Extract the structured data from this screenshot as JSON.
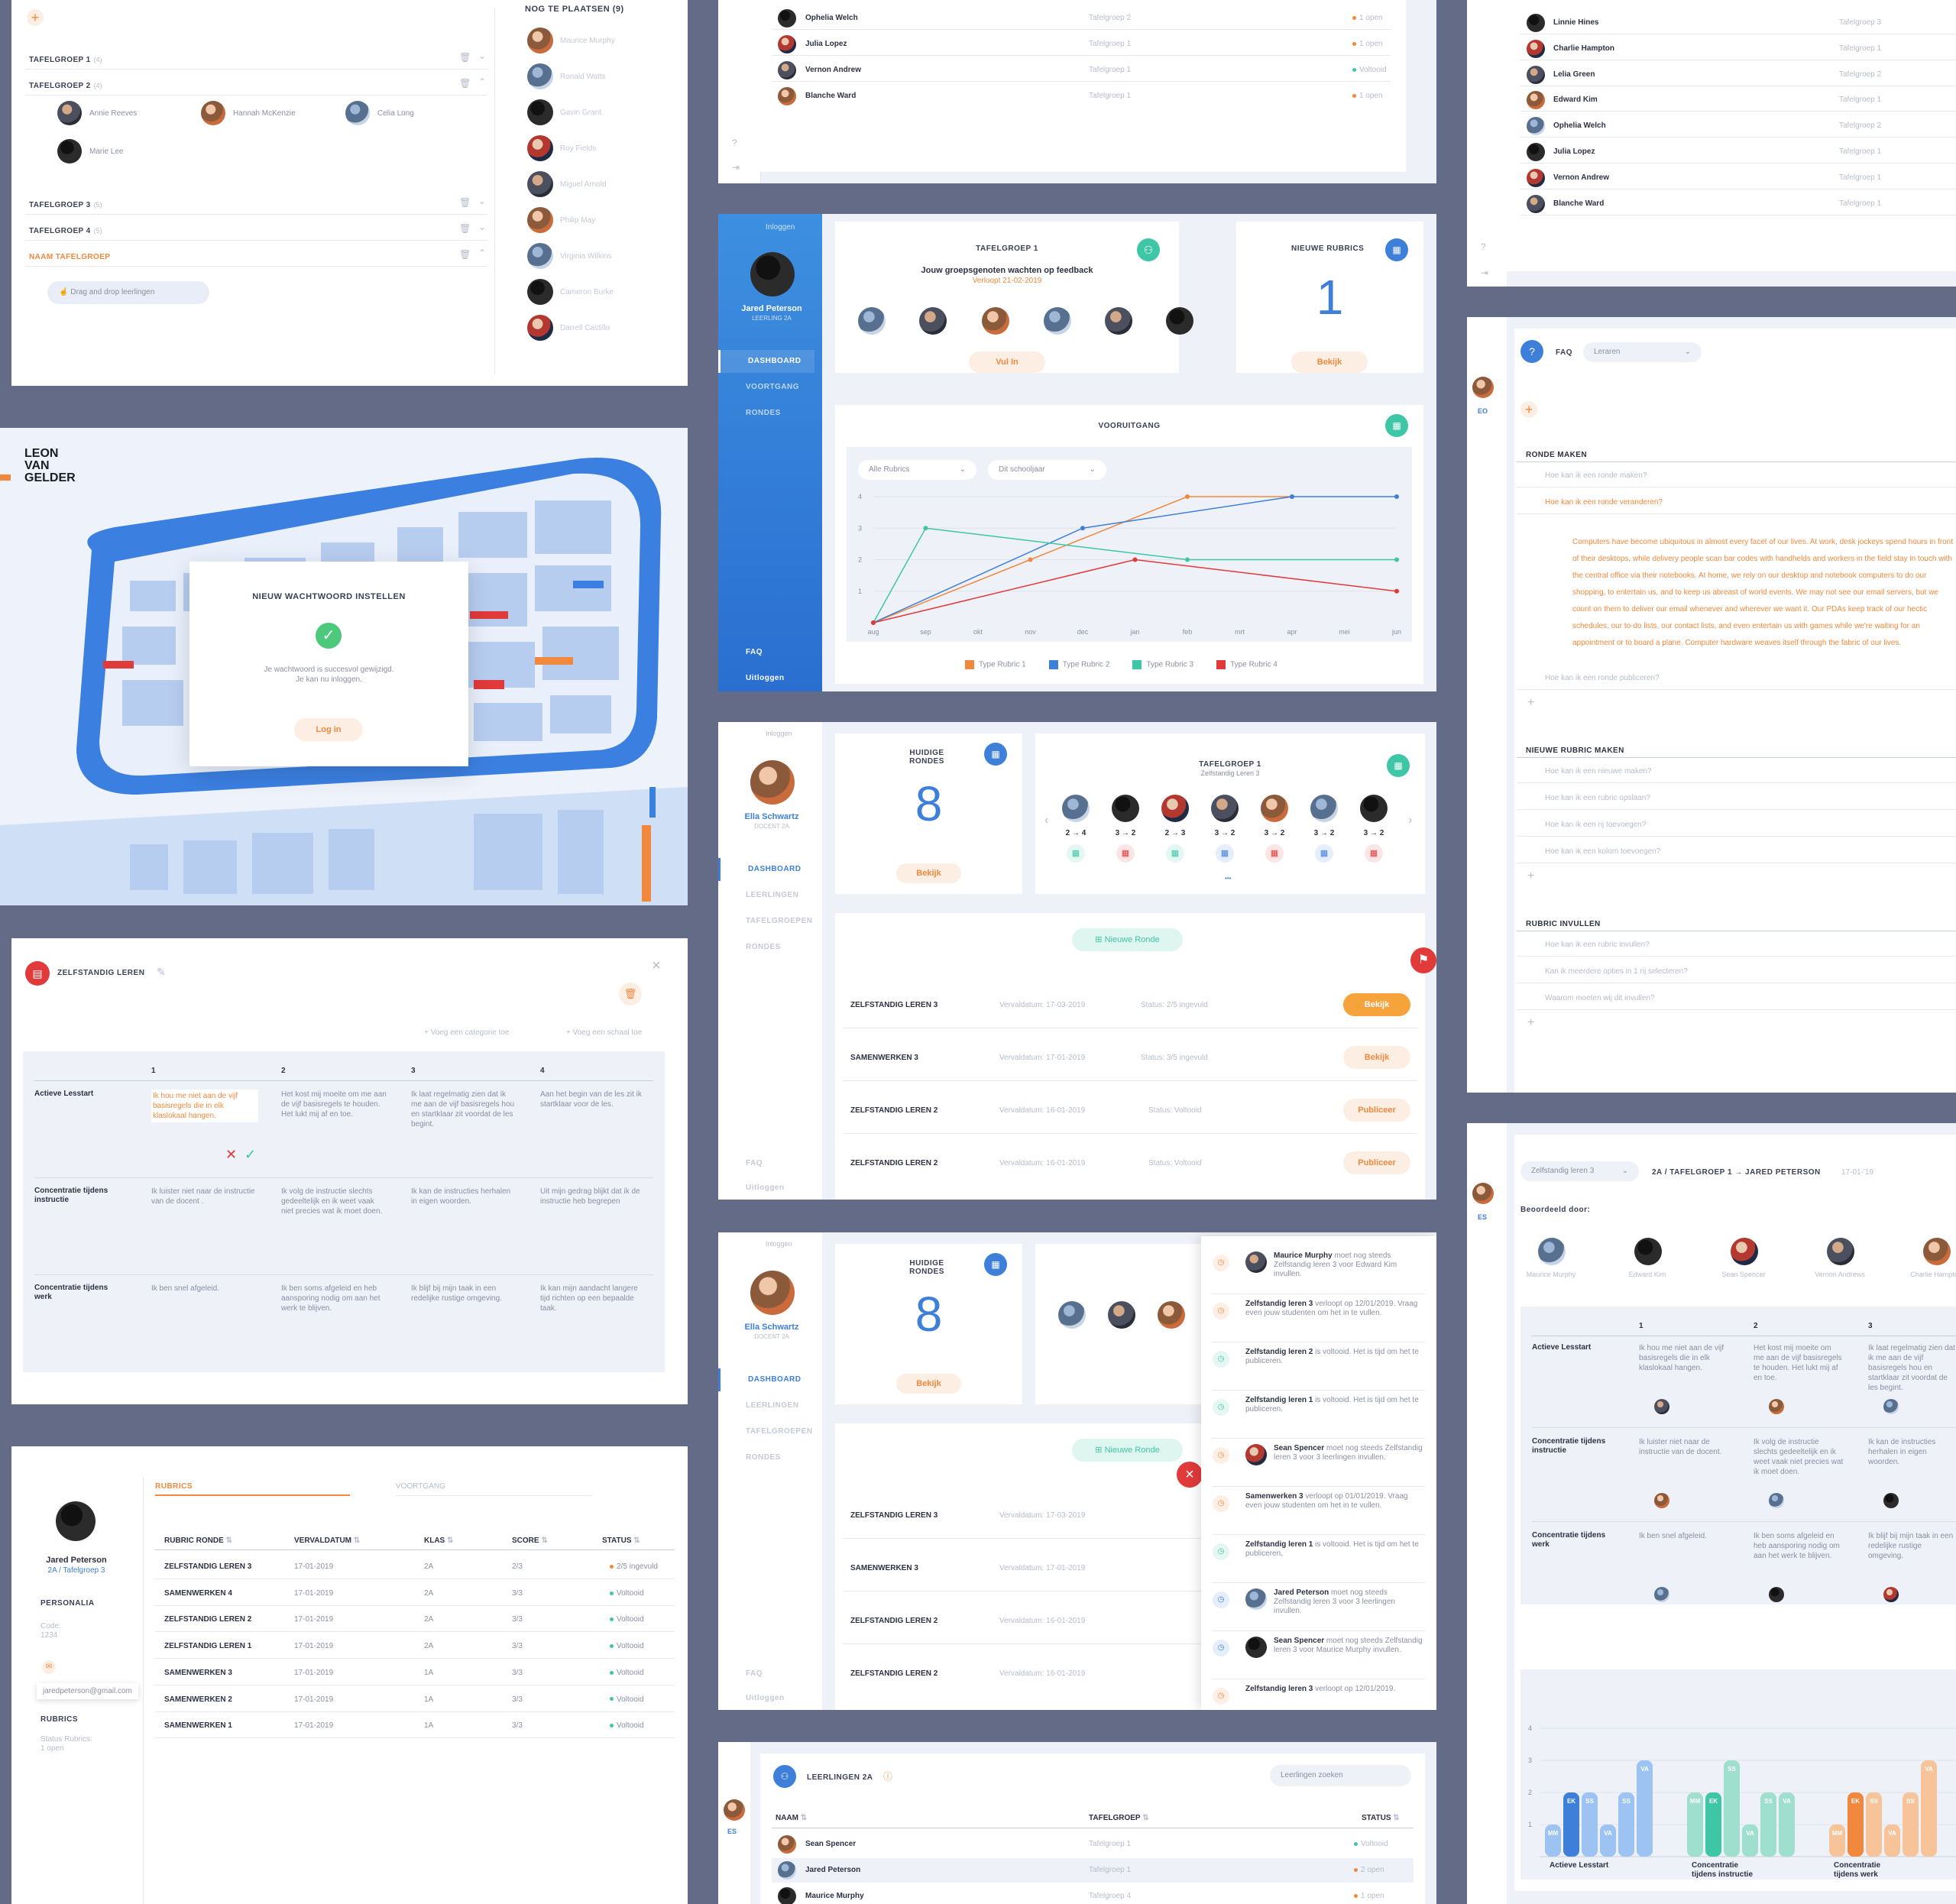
{
  "groups_panel": {
    "add_icon": "plus-icon",
    "groups": [
      {
        "name": "TAFELGROEP 1",
        "count": "(4)",
        "open": false
      },
      {
        "name": "TAFELGROEP 2",
        "count": "(4)",
        "open": true
      },
      {
        "name": "TAFELGROEP 3",
        "count": "(5)",
        "open": false
      },
      {
        "name": "TAFELGROEP 4",
        "count": "(5)",
        "open": false
      },
      {
        "name": "NAAM TAFELGROEP",
        "count": "",
        "open": true
      }
    ],
    "members": [
      "Annie Reeves",
      "Hannah McKenzie",
      "Celia Long",
      "Marie Lee"
    ],
    "drag_hint": "Drag and drop leerlingen",
    "unplaced_title": "NOG TE PLAATSEN (9)",
    "unplaced": [
      "Maurice Murphy",
      "Ronald Watts",
      "Gavin Grant",
      "Roy Fields",
      "Miguel Arnold",
      "Philip May",
      "Virginia Wilkins",
      "Cameron Burke",
      "Darrell Castillo"
    ]
  },
  "login": {
    "logo": "LEON VAN GELDER",
    "modal_title": "NIEUW WACHTWOORD INSTELLEN",
    "line1": "Je wachtwoord is succesvol gewijzigd.",
    "line2": "Je kan nu inloggen.",
    "button": "Log in"
  },
  "rubric_editor": {
    "title": "ZELFSTANDIG LEREN",
    "add_category": "Voeg een categorie toe",
    "add_scale": "Voeg een schaal toe",
    "levels": [
      "1",
      "2",
      "3",
      "4"
    ],
    "rows": [
      {
        "name": "Actieve Lesstart",
        "cells": [
          "Ik hou me niet aan de vijf basisregels die in elk klaslokaal hangen.",
          "Het kost mij moeite om me aan de vijf basisregels te houden. Het lukt mij af en toe.",
          "Ik laat regelmatig zien dat ik me aan de vijf basisregels hou en startklaar zit voordat de les begint.",
          "Aan het begin van de les zit ik startklaar voor de les."
        ]
      },
      {
        "name": "Concentratie tijdens instructie",
        "cells": [
          "Ik luister niet naar de instructie van de docent .",
          "Ik volg de instructie slechts gedeeltelijk en ik weet vaak niet precies wat ik moet doen.",
          "Ik kan de instructies herhalen in eigen woorden.",
          "Uit mijn gedrag blijkt dat ik de instructie heb begrepen"
        ]
      },
      {
        "name": "Concentratie tijdens werk",
        "cells": [
          "Ik ben snel afgeleid.",
          "Ik ben soms afgeleid en heb aansporing nodig om aan het werk te blijven.",
          "Ik blijf bij mijn taak in een redelijke rustige omgeving.",
          "Ik kan mijn aandacht langere tijd richten op een bepaalde taak."
        ]
      }
    ]
  },
  "profile": {
    "name": "Jared Peterson",
    "klas": "2A",
    "group": "Tafelgroep 3",
    "personalia": "PERSONALIA",
    "code_label": "Code:",
    "code": "1234",
    "email": "jaredpeterson@gmail.com",
    "rubrics_label": "RUBRICS",
    "status_label": "Status Rubrics:",
    "status_value": "1 open",
    "tabs": [
      "RUBRICS",
      "VOORTGANG"
    ],
    "headers": [
      "RUBRIC RONDE",
      "VERVALDATUM",
      "KLAS",
      "SCORE",
      "STATUS"
    ],
    "rows": [
      [
        "ZELFSTANDIG LEREN 3",
        "17-01-2019",
        "2A",
        "2/3",
        "2/5 ingevuld"
      ],
      [
        "SAMENWERKEN 4",
        "17-01-2019",
        "2A",
        "3/3",
        "Voltooid"
      ],
      [
        "ZELFSTANDIG LEREN 2",
        "17-01-2019",
        "2A",
        "3/3",
        "Voltooid"
      ],
      [
        "ZELFSTANDIG LEREN 1",
        "17-01-2019",
        "2A",
        "3/3",
        "Voltooid"
      ],
      [
        "SAMENWERKEN 3",
        "17-01-2019",
        "1A",
        "3/3",
        "Voltooid"
      ],
      [
        "SAMENWERKEN 2",
        "17-01-2019",
        "1A",
        "3/3",
        "Voltooid"
      ],
      [
        "SAMENWERKEN 1",
        "17-01-2019",
        "1A",
        "3/3",
        "Voltooid"
      ]
    ]
  },
  "top_list": {
    "rows": [
      [
        "Ophelia Welch",
        "Tafelgroep 2",
        "1 open"
      ],
      [
        "Julia Lopez",
        "Tafelgroep 1",
        "1 open"
      ],
      [
        "Vernon Andrew",
        "Tafelgroep 1",
        "Voltooid"
      ],
      [
        "Blanche Ward",
        "Tafelgroep 1",
        "1 open"
      ]
    ]
  },
  "student_dash": {
    "login": "Inloggen",
    "name": "Jared Peterson",
    "sub": "LEERLING 2A",
    "nav": [
      "DASHBOARD",
      "VOORTGANG",
      "RONDES"
    ],
    "faq": "FAQ",
    "logout": "Uitloggen",
    "group_title": "TAFELGROEP 1",
    "waiting": "Jouw groepsgenoten wachten op feedback",
    "expires": "Verloopt 21-02-2019",
    "fill_btn": "Vul In",
    "new_rubrics": "NIEUWE RUBRICS",
    "new_count": "1",
    "view_btn": "Bekijk",
    "progress_title": "VOORUITGANG",
    "filter1": "Alle Rubrics",
    "filter2": "Dit schooljaar"
  },
  "chart_data": {
    "type": "line",
    "title": "VOORUITGANG",
    "categories": [
      "aug",
      "sep",
      "okt",
      "nov",
      "dec",
      "jan",
      "feb",
      "mrt",
      "apr",
      "mei",
      "jun"
    ],
    "ylim": [
      0,
      4
    ],
    "yticks": [
      "1",
      "2",
      "3",
      "4"
    ],
    "series": [
      {
        "name": "Type Rubric 1",
        "color": "#f0893d",
        "points": [
          [
            0,
            0
          ],
          [
            3,
            2
          ],
          [
            6,
            4
          ],
          [
            8,
            4
          ]
        ]
      },
      {
        "name": "Type Rubric 2",
        "color": "#3d7fd9",
        "points": [
          [
            0,
            0
          ],
          [
            4,
            3
          ],
          [
            8,
            4
          ],
          [
            10,
            4
          ]
        ]
      },
      {
        "name": "Type Rubric 3",
        "color": "#3ec6a6",
        "points": [
          [
            0,
            0
          ],
          [
            1,
            3
          ],
          [
            6,
            2
          ],
          [
            10,
            2
          ]
        ]
      },
      {
        "name": "Type Rubric 4",
        "color": "#e03a3a",
        "points": [
          [
            0,
            0
          ],
          [
            5,
            2
          ],
          [
            10,
            1
          ]
        ]
      }
    ]
  },
  "teacher_dash": {
    "name": "Ella Schwartz",
    "sub": "DOCENT 2A",
    "login": "Inloggen",
    "nav": [
      "DASHBOARD",
      "LEERLINGEN",
      "TAFELGROEPEN",
      "RONDES"
    ],
    "faq": "FAQ",
    "logout": "Uitloggen",
    "current_title": "HUIDIGE RONDES",
    "current_count": "8",
    "view_btn": "Bekijk",
    "group_title": "TAFELGROEP 1",
    "group_sub": "Zelfstandig Leren 3",
    "scores": [
      "2 → 4",
      "3 → 2",
      "2 → 3",
      "3 → 2",
      "3 → 2",
      "3 → 2",
      "3 → 2"
    ],
    "new_round": "Nieuwe Ronde",
    "rounds": [
      {
        "name": "ZELFSTANDIG LEREN 3",
        "due": "Vervaldatum: 17-03-2019",
        "status": "Status: 2/5 ingevuld",
        "action": "Bekijk"
      },
      {
        "name": "SAMENWERKEN 3",
        "due": "Vervaldatum: 17-01-2019",
        "status": "Status: 3/5 ingevuld",
        "action": "Bekijk"
      },
      {
        "name": "ZELFSTANDIG LEREN 2",
        "due": "Vervaldatum: 16-01-2019",
        "status": "Status: Voltooid",
        "action": "Publiceer"
      },
      {
        "name": "ZELFSTANDIG LEREN 2",
        "due": "Vervaldatum: 16-01-2019",
        "status": "Status: Voltooid",
        "action": "Publiceer"
      }
    ]
  },
  "notifications": [
    {
      "b": "Maurice Murphy",
      "t": " moet nog steeds Zelfstandig leren 3 voor Edward Kim invullen."
    },
    {
      "b": "Zelfstandig leren 3",
      "t": " verloopt op 12/01/2019. Vraag even jouw studenten om het in te vullen."
    },
    {
      "b": "Zelfstandig leren 2",
      "t": " is voltooid. Het is tijd om het te publiceren."
    },
    {
      "b": "Zelfstandig leren 1",
      "t": " is voltooid. Het is tijd om het te publiceren."
    },
    {
      "b": "Sean Spencer",
      "t": " moet nog steeds Zelfstandig leren 3 voor 3 leerlingen invullen."
    },
    {
      "b": "Samenwerken 3",
      "t": " verloopt op 01/01/2019. Vraag even jouw studenten om het in te vullen."
    },
    {
      "b": "Zelfstandig leren 1",
      "t": " is voltooid. Het is tijd om het te publiceren."
    },
    {
      "b": "Jared Peterson",
      "t": " moet nog steeds Zelfstandig leren 3 voor 3 leerlingen invullen."
    },
    {
      "b": "Sean Spencer",
      "t": " moet nog steeds Zelfstandig leren 3 voor Maurice Murphy invullen."
    },
    {
      "b": "Zelfstandig leren 3",
      "t": " verloopt op 12/01/2019."
    }
  ],
  "students_list": {
    "title": "LEERLINGEN 2A",
    "search": "Leerlingen zoeken",
    "headers": [
      "NAAM",
      "TAFELGROEP",
      "STATUS"
    ],
    "rows": [
      [
        "Sean Spencer",
        "Tafelgroep 1",
        "Voltooid"
      ],
      [
        "Jared Peterson",
        "Tafelgroep 1",
        "2 open"
      ],
      [
        "Maurice Murphy",
        "Tafelgroep 4",
        "1 open"
      ]
    ]
  },
  "right_list": {
    "rows": [
      [
        "Linnie Hines",
        "Tafelgroep 3"
      ],
      [
        "Charlie Hampton",
        "Tafelgroep 1"
      ],
      [
        "Lelia Green",
        "Tafelgroep 2"
      ],
      [
        "Edward Kim",
        "Tafelgroep 1"
      ],
      [
        "Ophelia Welch",
        "Tafelgroep 2"
      ],
      [
        "Julia Lopez",
        "Tafelgroep 1"
      ],
      [
        "Vernon Andrew",
        "Tafelgroep 1"
      ],
      [
        "Blanche Ward",
        "Tafelgroep 1"
      ]
    ]
  },
  "faq": {
    "title": "FAQ",
    "filter": "Leraren",
    "initials": "EO",
    "sections": [
      {
        "title": "RONDE MAKEN",
        "items": [
          "Hoe kan ik een ronde maken?",
          "Hoe kan ik een ronde veranderen?",
          "Hoe kan ik een ronde publiceren?"
        ]
      },
      {
        "title": "NIEUWE RUBRIC MAKEN",
        "items": [
          "Hoe kan ik een nieuwe maken?",
          "Hoe kan ik een rubric opslaan?",
          "Hoe kan ik een rij toevoegen?",
          "Hoe kan ik een kolom toevoegen?"
        ]
      },
      {
        "title": "RUBRIC INVULLEN",
        "items": [
          "Hoe kan ik een rubric invullen?",
          "Kan ik meerdere opties in 1 rij selecteren?",
          "Waarom moeten wij dit invullen?"
        ]
      }
    ],
    "answer": "Computers have become ubiquitous in almost every facet of our lives. At work, desk jockeys spend hours in front of their desktops, while delivery people scan bar codes with handhelds and workers in the field stay in touch with the central office via their notebooks. At home, we rely on our desktop and notebook computers to do our shopping, to entertain us, and to keep us abreast of world events. We may not see our email servers, but we count on them to deliver our email whenever and wherever we want it. Our PDAs keep track of our hectic schedules, our to-do lists, our contact lists, and even entertain us with games while we're waiting for an appointment or to board a plane. Computer hardware weaves itself through the fabric of our lives."
  },
  "review": {
    "initials": "ES",
    "select": "Zelfstandig leren 3",
    "path": "2A / TAFELGROEP 1 → JARED PETERSON",
    "date": "17-01-'19",
    "by": "Beoordeeld door:",
    "reviewers": [
      "Maurice Murphy",
      "Edward Kim",
      "Sean Spencer",
      "Vernon Andrews",
      "Charlie Hampton"
    ],
    "levels": [
      "1",
      "2",
      "3"
    ],
    "rows": [
      {
        "name": "Actieve Lesstart",
        "cells": [
          "Ik hou me niet aan de vijf basisregels die in elk klaslokaal hangen.",
          "Het kost mij moeite om me aan de vijf basisregels te houden. Het lukt mij af en toe.",
          "Ik laat regelmatig zien dat ik me aan de vijf basisregels hou en startklaar zit voordat de les begint."
        ]
      },
      {
        "name": "Concentratie tijdens instructie",
        "cells": [
          "Ik luister niet naar de instructie van de docent.",
          "Ik volg de instructie slechts gedeeltelijk en ik weet vaak niet precies wat ik moet doen.",
          "Ik kan de instructies herhalen in eigen woorden."
        ]
      },
      {
        "name": "Concentratie tijdens werk",
        "cells": [
          "Ik ben snel afgeleid.",
          "Ik ben soms afgeleid en heb aansporing nodig om aan het werk te blijven.",
          "Ik blijf bij mijn taak in een redelijke rustige omgeving."
        ]
      }
    ],
    "bar_chart": {
      "groups": [
        "Actieve Lesstart",
        "Concentratie tijdens instructie",
        "Concentratie tijdens werk"
      ],
      "yticks": [
        "1",
        "2",
        "3",
        "4"
      ],
      "bars": [
        [
          "MM",
          1
        ],
        [
          "EK",
          2
        ],
        [
          "SS",
          2
        ],
        [
          "VA",
          1
        ],
        [
          "SS",
          2
        ],
        [
          "VA",
          3
        ],
        [
          "MM",
          2
        ],
        [
          "EK",
          2
        ],
        [
          "SS",
          3
        ],
        [
          "VA",
          1
        ],
        [
          "SS",
          2
        ],
        [
          "VA",
          2
        ],
        [
          "MM",
          1
        ],
        [
          "EK",
          2
        ],
        [
          "SS",
          2
        ],
        [
          "VA",
          1
        ],
        [
          "SS",
          2
        ],
        [
          "VA",
          3
        ]
      ]
    }
  }
}
